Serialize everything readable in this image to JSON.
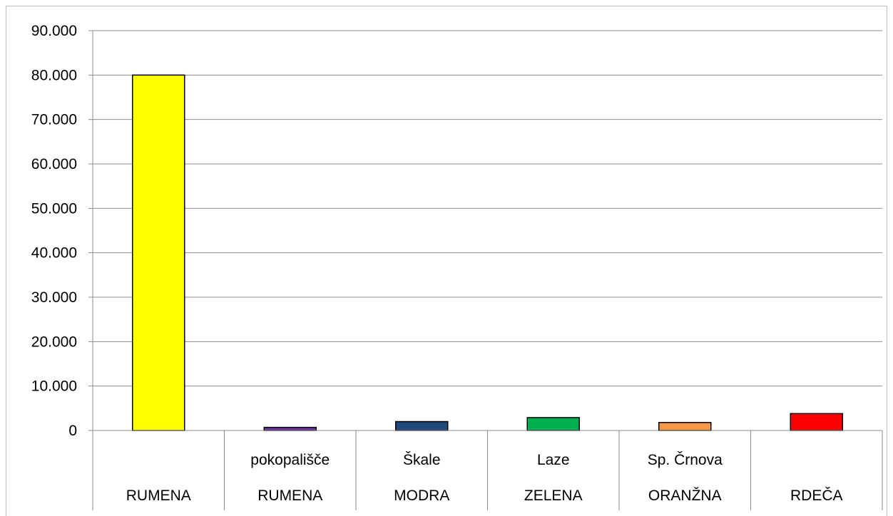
{
  "chart_data": {
    "type": "bar",
    "title": "",
    "xlabel": "",
    "ylabel": "",
    "ylim": [
      0,
      90000
    ],
    "y_ticks": [
      {
        "value": 0,
        "label": "0"
      },
      {
        "value": 10000,
        "label": "10.000"
      },
      {
        "value": 20000,
        "label": "20.000"
      },
      {
        "value": 30000,
        "label": "30.000"
      },
      {
        "value": 40000,
        "label": "40.000"
      },
      {
        "value": 50000,
        "label": "50.000"
      },
      {
        "value": 60000,
        "label": "60.000"
      },
      {
        "value": 70000,
        "label": "70.000"
      },
      {
        "value": 80000,
        "label": "80.000"
      },
      {
        "value": 90000,
        "label": "90.000"
      }
    ],
    "grid": true,
    "legend": "none",
    "categories": [
      {
        "line1": "",
        "line2": "RUMENA",
        "color": "#ffff00"
      },
      {
        "line1": "pokopališče",
        "line2": "RUMENA",
        "color": "#7030a0"
      },
      {
        "line1": "Škale",
        "line2": "MODRA",
        "color": "#1f497d"
      },
      {
        "line1": "Laze",
        "line2": "ZELENA",
        "color": "#00b050"
      },
      {
        "line1": "Sp. Črnova",
        "line2": "ORANŽNA",
        "color": "#f79646"
      },
      {
        "line1": "",
        "line2": "RDEČA",
        "color": "#ff0000"
      }
    ],
    "values": [
      80000,
      700,
      2000,
      2900,
      1800,
      3800
    ]
  }
}
